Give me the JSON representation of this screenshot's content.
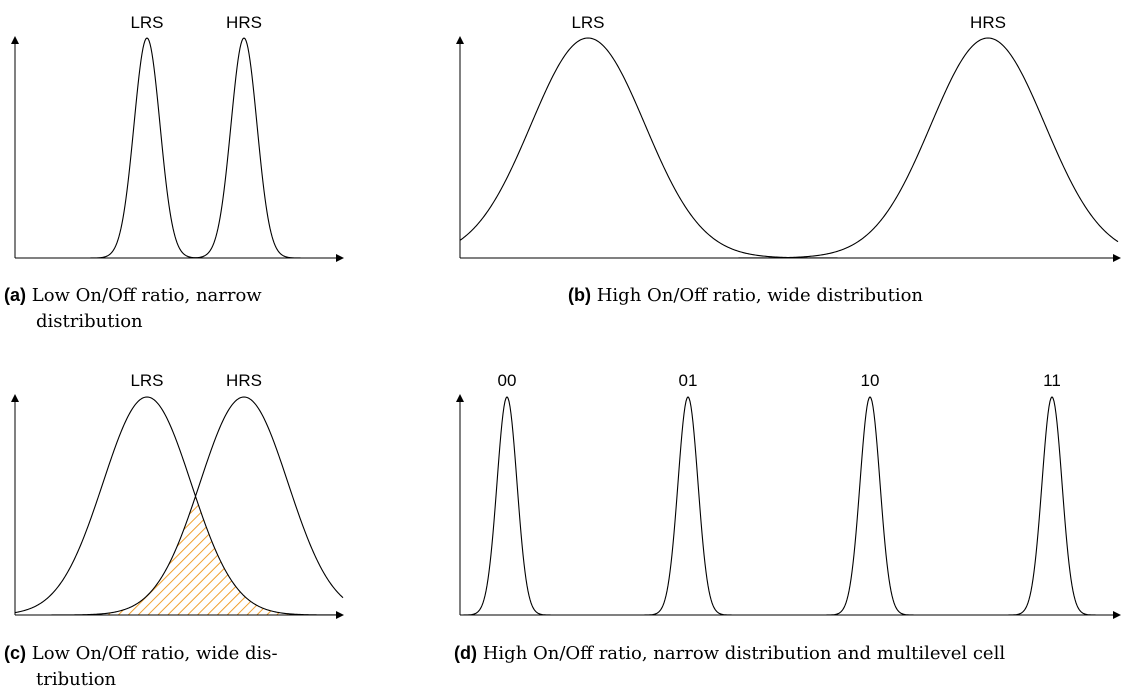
{
  "panels": [
    {
      "id": "a",
      "tag": "(a)",
      "caption_line1": "Low On/Off ratio, narrow",
      "caption_line2": "distribution",
      "peaks": [
        {
          "label": "LRS"
        },
        {
          "label": "HRS"
        }
      ],
      "overlap_hatched": false
    },
    {
      "id": "b",
      "tag": "(b)",
      "caption_line1": "High On/Off ratio, wide distribution",
      "caption_line2": "",
      "peaks": [
        {
          "label": "LRS"
        },
        {
          "label": "HRS"
        }
      ],
      "overlap_hatched": false
    },
    {
      "id": "c",
      "tag": "(c)",
      "caption_line1": "Low On/Off ratio, wide dis-",
      "caption_line2": "tribution",
      "peaks": [
        {
          "label": "LRS"
        },
        {
          "label": "HRS"
        }
      ],
      "overlap_hatched": true,
      "hatch_color": "#f0a030"
    },
    {
      "id": "d",
      "tag": "(d)",
      "caption_line1": "High On/Off ratio, narrow distribution and multilevel cell",
      "caption_line2": "",
      "peaks": [
        {
          "label": "00"
        },
        {
          "label": "01"
        },
        {
          "label": "10"
        },
        {
          "label": "11"
        }
      ],
      "overlap_hatched": false
    }
  ]
}
